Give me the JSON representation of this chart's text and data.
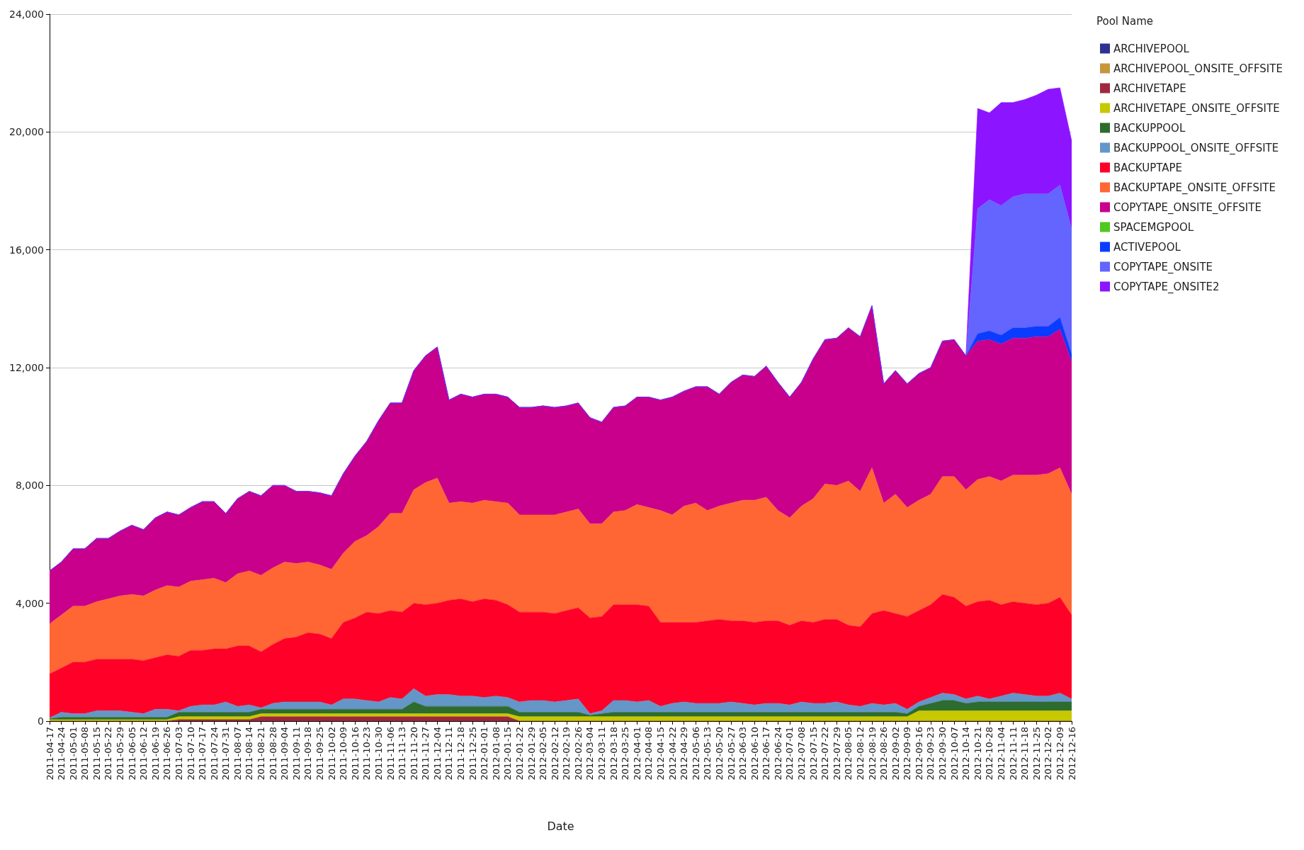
{
  "chart_data": {
    "type": "area",
    "stacked": true,
    "xlabel": "Date",
    "legend_title": "Pool Name",
    "legend": "top right",
    "grid": "y",
    "ylim": [
      0,
      24000
    ],
    "yticks": [
      0,
      {
        "value": 4000,
        "label": "4,000"
      },
      {
        "value": 8000,
        "label": "8,000"
      },
      {
        "value": 12000,
        "label": "12,000"
      },
      {
        "value": 16000,
        "label": "16,000"
      },
      {
        "value": 20000,
        "label": "20,000"
      },
      {
        "value": 24000,
        "label": "24,000"
      }
    ],
    "categories": [
      "2011-04-17",
      "2011-04-24",
      "2011-05-01",
      "2011-05-08",
      "2011-05-15",
      "2011-05-22",
      "2011-05-29",
      "2011-06-05",
      "2011-06-12",
      "2011-06-19",
      "2011-06-26",
      "2011-07-03",
      "2011-07-10",
      "2011-07-17",
      "2011-07-24",
      "2011-07-31",
      "2011-08-07",
      "2011-08-14",
      "2011-08-21",
      "2011-08-28",
      "2011-09-04",
      "2011-09-11",
      "2011-09-18",
      "2011-09-25",
      "2011-10-02",
      "2011-10-09",
      "2011-10-16",
      "2011-10-23",
      "2011-10-30",
      "2011-11-06",
      "2011-11-13",
      "2011-11-20",
      "2011-11-27",
      "2011-12-04",
      "2011-12-11",
      "2011-12-18",
      "2011-12-25",
      "2012-01-01",
      "2012-01-08",
      "2012-01-15",
      "2012-01-22",
      "2012-01-29",
      "2012-02-05",
      "2012-02-12",
      "2012-02-19",
      "2012-02-26",
      "2012-03-04",
      "2012-03-11",
      "2012-03-18",
      "2012-03-25",
      "2012-04-01",
      "2012-04-08",
      "2012-04-15",
      "2012-04-22",
      "2012-04-29",
      "2012-05-06",
      "2012-05-13",
      "2012-05-20",
      "2012-05-27",
      "2012-06-03",
      "2012-06-10",
      "2012-06-17",
      "2012-06-24",
      "2012-07-01",
      "2012-07-08",
      "2012-07-15",
      "2012-07-22",
      "2012-07-29",
      "2012-08-05",
      "2012-08-12",
      "2012-08-19",
      "2012-08-26",
      "2012-09-02",
      "2012-09-09",
      "2012-09-16",
      "2012-09-23",
      "2012-09-30",
      "2012-10-07",
      "2012-10-14",
      "2012-10-21",
      "2012-10-28",
      "2012-11-04",
      "2012-11-11",
      "2012-11-18",
      "2012-11-25",
      "2012-12-02",
      "2012-12-09",
      "2012-12-16"
    ],
    "series": [
      {
        "name": "ARCHIVEPOOL",
        "color": "#2e3192",
        "values": [
          null,
          null,
          null,
          null,
          null,
          null,
          null,
          null,
          null,
          null,
          null,
          null,
          null,
          null,
          null,
          null,
          null,
          null,
          null,
          null,
          null,
          null,
          null,
          null,
          null,
          null,
          null,
          null,
          null,
          null,
          null,
          null,
          null,
          null,
          null,
          null,
          null,
          null,
          null,
          null,
          null,
          null,
          null,
          null,
          null,
          null,
          null,
          null,
          null,
          null,
          null,
          null,
          null,
          null,
          null,
          null,
          null,
          null,
          null,
          null,
          null,
          null,
          null,
          null,
          null,
          null,
          null,
          null,
          null,
          null,
          null,
          null,
          null,
          null,
          null,
          null,
          null,
          null,
          null,
          null,
          null,
          null,
          null,
          null,
          null,
          null,
          null,
          null
        ]
      },
      {
        "name": "ARCHIVEPOOL_ONSITE_OFFSITE",
        "color": "#c8963c",
        "values": [
          null,
          null,
          null,
          null,
          null,
          null,
          null,
          null,
          null,
          null,
          null,
          null,
          null,
          null,
          null,
          null,
          null,
          null,
          null,
          null,
          null,
          null,
          null,
          null,
          null,
          null,
          null,
          null,
          null,
          null,
          null,
          null,
          null,
          null,
          null,
          null,
          null,
          null,
          null,
          null,
          null,
          null,
          null,
          null,
          null,
          null,
          null,
          null,
          null,
          null,
          null,
          null,
          null,
          null,
          null,
          null,
          null,
          null,
          null,
          null,
          null,
          null,
          null,
          null,
          null,
          null,
          null,
          null,
          null,
          null,
          null,
          null,
          null,
          null,
          null,
          null,
          null,
          null,
          null,
          null,
          null,
          null,
          null,
          null,
          null,
          null,
          null,
          null
        ]
      },
      {
        "name": "ARCHIVETAPE",
        "color": "#a0283c",
        "values": [
          0,
          0,
          0,
          0,
          0,
          0,
          0,
          0,
          0,
          0,
          0,
          50,
          50,
          50,
          50,
          50,
          50,
          50,
          150,
          150,
          150,
          150,
          150,
          150,
          150,
          150,
          150,
          150,
          150,
          150,
          150,
          150,
          150,
          150,
          150,
          150,
          150,
          150,
          150,
          150,
          0,
          0,
          0,
          0,
          0,
          0,
          0,
          0,
          0,
          0,
          0,
          0,
          0,
          0,
          0,
          0,
          0,
          0,
          0,
          0,
          0,
          0,
          0,
          0,
          0,
          0,
          0,
          0,
          0,
          0,
          0,
          0,
          0,
          0,
          0,
          0,
          0,
          0,
          0,
          0,
          0,
          0,
          0,
          0,
          0,
          0,
          0,
          0
        ]
      },
      {
        "name": "ARCHIVETAPE_ONSITE_OFFSITE",
        "color": "#c8c800",
        "values": [
          50,
          50,
          50,
          50,
          50,
          50,
          50,
          50,
          50,
          50,
          50,
          100,
          100,
          100,
          100,
          100,
          100,
          100,
          100,
          100,
          100,
          100,
          100,
          100,
          100,
          100,
          100,
          100,
          100,
          100,
          100,
          100,
          100,
          100,
          100,
          100,
          100,
          100,
          100,
          100,
          150,
          150,
          150,
          150,
          150,
          150,
          150,
          150,
          150,
          150,
          150,
          150,
          150,
          150,
          150,
          150,
          150,
          150,
          150,
          150,
          150,
          150,
          150,
          150,
          150,
          150,
          150,
          150,
          150,
          150,
          150,
          150,
          150,
          150,
          350,
          350,
          350,
          350,
          350,
          350,
          350,
          350,
          350,
          350,
          350,
          350,
          350,
          350
        ]
      },
      {
        "name": "BACKUPPOOL",
        "color": "#2e6b2e",
        "values": [
          30,
          80,
          80,
          80,
          80,
          80,
          80,
          80,
          80,
          80,
          80,
          150,
          150,
          150,
          150,
          150,
          150,
          150,
          150,
          150,
          150,
          150,
          150,
          150,
          150,
          150,
          150,
          150,
          150,
          150,
          150,
          400,
          250,
          250,
          250,
          250,
          250,
          250,
          250,
          250,
          150,
          150,
          150,
          150,
          150,
          150,
          50,
          100,
          150,
          150,
          150,
          150,
          150,
          150,
          150,
          150,
          150,
          150,
          150,
          150,
          150,
          150,
          150,
          150,
          150,
          150,
          150,
          150,
          150,
          150,
          150,
          150,
          150,
          100,
          150,
          250,
          350,
          350,
          250,
          300,
          300,
          300,
          300,
          300,
          300,
          300,
          300,
          300
        ]
      },
      {
        "name": "BACKUPPOOL_ONSITE_OFFSITE",
        "color": "#6496c8",
        "values": [
          30,
          170,
          120,
          120,
          220,
          220,
          220,
          170,
          120,
          270,
          270,
          50,
          200,
          250,
          250,
          350,
          200,
          250,
          50,
          200,
          250,
          250,
          250,
          250,
          150,
          350,
          350,
          300,
          250,
          400,
          350,
          450,
          350,
          400,
          400,
          350,
          350,
          300,
          350,
          300,
          350,
          400,
          400,
          350,
          400,
          450,
          50,
          100,
          400,
          400,
          350,
          400,
          200,
          300,
          350,
          300,
          300,
          300,
          350,
          300,
          250,
          300,
          300,
          250,
          350,
          300,
          300,
          350,
          250,
          200,
          300,
          250,
          300,
          150,
          150,
          200,
          250,
          200,
          150,
          200,
          100,
          200,
          300,
          250,
          200,
          200,
          300,
          100
        ]
      },
      {
        "name": "BACKUPTAPE",
        "color": "#ff0028",
        "values": [
          1490,
          1500,
          1750,
          1750,
          1750,
          1750,
          1750,
          1800,
          1800,
          1750,
          1850,
          1850,
          1900,
          1850,
          1900,
          1800,
          2050,
          2000,
          1900,
          2000,
          2150,
          2200,
          2350,
          2300,
          2250,
          2600,
          2750,
          3000,
          3000,
          2950,
          2950,
          2900,
          3100,
          3100,
          3200,
          3300,
          3200,
          3350,
          3250,
          3150,
          3050,
          3000,
          3000,
          3000,
          3050,
          3100,
          3250,
          3200,
          3250,
          3250,
          3300,
          3200,
          2850,
          2750,
          2700,
          2750,
          2800,
          2850,
          2750,
          2800,
          2800,
          2800,
          2800,
          2700,
          2750,
          2750,
          2850,
          2800,
          2700,
          2700,
          3050,
          3200,
          3050,
          3150,
          3100,
          3150,
          3350,
          3300,
          3150,
          3200,
          3350,
          3100,
          3100,
          3100,
          3100,
          3150,
          3250,
          2850
        ]
      },
      {
        "name": "BACKUPTAPE_ONSITE_OFFSITE",
        "color": "#ff6633",
        "values": [
          1700,
          1800,
          1900,
          1900,
          1950,
          2050,
          2150,
          2200,
          2200,
          2300,
          2350,
          2350,
          2350,
          2400,
          2400,
          2250,
          2450,
          2550,
          2600,
          2600,
          2600,
          2500,
          2400,
          2350,
          2350,
          2350,
          2600,
          2600,
          2950,
          3300,
          3350,
          3850,
          4150,
          4250,
          3300,
          3300,
          3350,
          3350,
          3350,
          3450,
          3300,
          3300,
          3300,
          3350,
          3350,
          3350,
          3200,
          3150,
          3150,
          3200,
          3400,
          3350,
          3800,
          3650,
          3950,
          4050,
          3750,
          3850,
          4000,
          4100,
          4150,
          4200,
          3750,
          3650,
          3900,
          4200,
          4600,
          4550,
          4900,
          4600,
          4950,
          3650,
          4050,
          3700,
          3750,
          3750,
          4000,
          4100,
          3950,
          4150,
          4200,
          4200,
          4300,
          4350,
          4400,
          4400,
          4400,
          4100
        ]
      },
      {
        "name": "COPYTAPE_ONSITE_OFFSITE",
        "color": "#c8008c",
        "values": [
          1800,
          1800,
          1950,
          1950,
          2150,
          2050,
          2200,
          2350,
          2250,
          2450,
          2500,
          2450,
          2500,
          2650,
          2600,
          2350,
          2550,
          2700,
          2700,
          2800,
          2600,
          2450,
          2400,
          2450,
          2500,
          2700,
          2900,
          3200,
          3600,
          3750,
          3750,
          4050,
          4300,
          4450,
          3500,
          3650,
          3600,
          3600,
          3650,
          3600,
          3650,
          3650,
          3700,
          3650,
          3600,
          3600,
          3600,
          3450,
          3550,
          3550,
          3650,
          3750,
          3750,
          4000,
          3900,
          3950,
          4200,
          3800,
          4100,
          4250,
          4200,
          4450,
          4350,
          4100,
          4200,
          4750,
          4900,
          5000,
          5200,
          5250,
          5500,
          4050,
          4200,
          4200,
          4300,
          4300,
          4600,
          4650,
          4550,
          4700,
          4650,
          4650,
          4650,
          4650,
          4700,
          4650,
          4700,
          4500
        ]
      },
      {
        "name": "SPACEMGPOOL",
        "color": "#50c81e",
        "values": [
          null,
          null,
          null,
          null,
          null,
          null,
          null,
          null,
          null,
          null,
          null,
          null,
          null,
          null,
          null,
          null,
          null,
          null,
          null,
          null,
          null,
          null,
          null,
          null,
          null,
          null,
          null,
          null,
          null,
          null,
          null,
          null,
          null,
          null,
          null,
          null,
          null,
          null,
          null,
          null,
          null,
          null,
          null,
          null,
          null,
          null,
          null,
          null,
          null,
          null,
          null,
          null,
          null,
          null,
          null,
          null,
          null,
          null,
          null,
          null,
          null,
          null,
          null,
          null,
          null,
          null,
          null,
          null,
          null,
          null,
          null,
          null,
          null,
          null,
          null,
          null,
          null,
          null,
          null,
          null,
          null,
          null,
          null,
          null,
          null,
          null,
          null,
          null
        ]
      },
      {
        "name": "ACTIVEPOOL",
        "color": "#0a3cff",
        "values": [
          0,
          0,
          0,
          0,
          0,
          0,
          0,
          0,
          0,
          0,
          0,
          0,
          0,
          0,
          0,
          0,
          0,
          0,
          0,
          0,
          0,
          0,
          0,
          0,
          0,
          0,
          0,
          0,
          0,
          0,
          0,
          0,
          0,
          0,
          0,
          0,
          0,
          0,
          0,
          0,
          0,
          0,
          0,
          0,
          0,
          0,
          0,
          0,
          0,
          0,
          0,
          0,
          0,
          0,
          0,
          0,
          0,
          0,
          0,
          0,
          0,
          0,
          0,
          0,
          0,
          0,
          0,
          0,
          0,
          0,
          0,
          0,
          0,
          0,
          0,
          0,
          0,
          0,
          0,
          250,
          300,
          300,
          350,
          350,
          350,
          350,
          400,
          250
        ]
      },
      {
        "name": "COPYTAPE_ONSITE",
        "color": "#6464ff",
        "values": [
          0,
          0,
          0,
          0,
          0,
          0,
          0,
          0,
          0,
          0,
          0,
          0,
          0,
          0,
          0,
          0,
          0,
          0,
          0,
          0,
          0,
          0,
          0,
          0,
          0,
          0,
          0,
          0,
          0,
          0,
          0,
          0,
          0,
          0,
          0,
          0,
          0,
          0,
          0,
          0,
          0,
          0,
          0,
          0,
          0,
          0,
          0,
          0,
          0,
          0,
          0,
          0,
          0,
          0,
          0,
          0,
          0,
          0,
          0,
          0,
          0,
          0,
          0,
          0,
          0,
          0,
          0,
          0,
          0,
          0,
          0,
          0,
          0,
          0,
          0,
          0,
          0,
          0,
          0,
          4250,
          4450,
          4400,
          4450,
          4550,
          4500,
          4500,
          4500,
          4250
        ]
      },
      {
        "name": "COPYTAPE_ONSITE2",
        "color": "#8c14ff",
        "values": [
          0,
          0,
          0,
          0,
          0,
          0,
          0,
          0,
          0,
          0,
          0,
          0,
          0,
          0,
          0,
          0,
          0,
          0,
          0,
          0,
          0,
          0,
          0,
          0,
          0,
          0,
          0,
          0,
          0,
          0,
          0,
          0,
          0,
          0,
          0,
          0,
          0,
          0,
          0,
          0,
          0,
          0,
          0,
          0,
          0,
          0,
          0,
          0,
          0,
          0,
          0,
          0,
          0,
          0,
          0,
          0,
          0,
          0,
          0,
          0,
          0,
          0,
          0,
          0,
          0,
          0,
          0,
          0,
          0,
          0,
          0,
          0,
          0,
          0,
          0,
          0,
          0,
          0,
          0,
          3400,
          2950,
          3500,
          3200,
          3200,
          3350,
          3550,
          3300,
          3000
        ]
      }
    ]
  }
}
